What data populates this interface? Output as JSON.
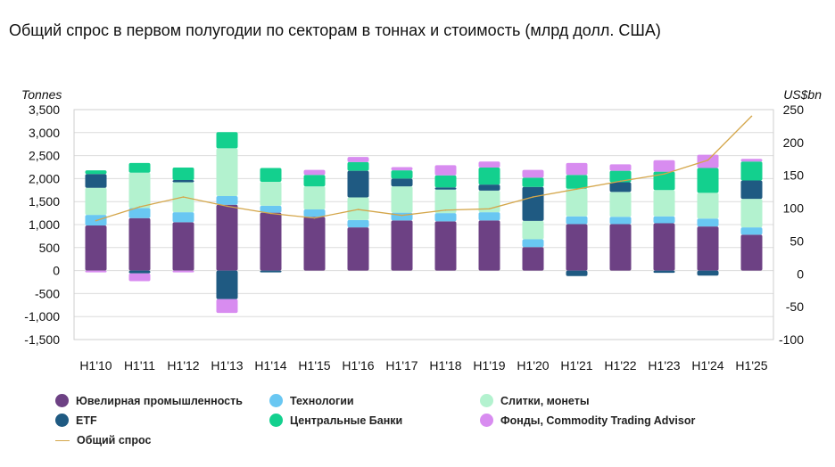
{
  "title": "Общий спрос в первом полугодии по секторам в тоннах и стоимость (млрд долл. США)",
  "chart_data": {
    "type": "bar",
    "stacked": true,
    "title": "Общий спрос в первом полугодии по секторам в тоннах и стоимость (млрд долл. США)",
    "ylabel_left": "Tonnes",
    "ylabel_right": "US$bn",
    "ylim_left": [
      -1500,
      3500
    ],
    "ylim_right": [
      -100,
      250
    ],
    "yticks_left": [
      "3,500",
      "3,000",
      "2,500",
      "2,000",
      "1,500",
      "1,000",
      "500",
      "0",
      "-500",
      "-1,000",
      "-1,500"
    ],
    "yticks_left_values": [
      3500,
      3000,
      2500,
      2000,
      1500,
      1000,
      500,
      0,
      -500,
      -1000,
      -1500
    ],
    "yticks_right": [
      "250",
      "200",
      "150",
      "100",
      "50",
      "0",
      "-50",
      "-100"
    ],
    "yticks_right_values": [
      250,
      200,
      150,
      100,
      50,
      0,
      -50,
      -100
    ],
    "categories": [
      "H1'10",
      "H1'11",
      "H1'12",
      "H1'13",
      "H1'14",
      "H1'15",
      "H1'16",
      "H1'17",
      "H1'18",
      "H1'19",
      "H1'20",
      "H1'21",
      "H1'22",
      "H1'23",
      "H1'24",
      "H1'25"
    ],
    "grid": "horizontal",
    "legend_position": "bottom",
    "series": [
      {
        "name": "Ювелирная промышленность",
        "color": "#6d4184",
        "values": [
          980,
          1140,
          1050,
          1430,
          1260,
          1170,
          940,
          1090,
          1070,
          1090,
          510,
          1010,
          1010,
          1030,
          960,
          780
        ]
      },
      {
        "name": "Технологии",
        "color": "#69c7f2",
        "values": [
          230,
          220,
          220,
          190,
          150,
          160,
          160,
          170,
          180,
          180,
          170,
          170,
          160,
          150,
          170,
          160
        ]
      },
      {
        "name": "Слитки, монеты",
        "color": "#b3f2cf",
        "values": [
          590,
          770,
          650,
          1040,
          520,
          500,
          490,
          570,
          510,
          470,
          400,
          600,
          540,
          570,
          560,
          620
        ]
      },
      {
        "name": "ETF",
        "color": "#1f5a82",
        "values": [
          300,
          -60,
          50,
          -620,
          -40,
          0,
          580,
          170,
          50,
          130,
          740,
          -120,
          210,
          -50,
          -110,
          400
        ]
      },
      {
        "name": "Центральные Банки",
        "color": "#13d08e",
        "values": [
          80,
          210,
          270,
          350,
          300,
          250,
          190,
          180,
          260,
          370,
          200,
          300,
          250,
          400,
          540,
          410
        ]
      },
      {
        "name": "Фонды, Commodity Trading Advisor",
        "color": "#d88cf0",
        "values": [
          -40,
          -170,
          -40,
          -300,
          0,
          110,
          110,
          70,
          220,
          130,
          170,
          260,
          140,
          250,
          290,
          60
        ]
      }
    ],
    "line_series": {
      "name": "Общий спрос",
      "color": "#d4a64a",
      "axis": "right",
      "values": [
        81,
        102,
        117,
        103,
        92,
        85,
        98,
        89,
        97,
        99,
        117,
        129,
        141,
        152,
        173,
        240
      ]
    }
  },
  "legend": {
    "jewelry": "Ювелирная промышленность",
    "technology": "Технологии",
    "bars_coins": "Слитки, монеты",
    "etf": "ETF",
    "central_banks": "Центральные Банки",
    "otc": "Фонды, Commodity Trading Advisor",
    "total": "Общий спрос"
  }
}
